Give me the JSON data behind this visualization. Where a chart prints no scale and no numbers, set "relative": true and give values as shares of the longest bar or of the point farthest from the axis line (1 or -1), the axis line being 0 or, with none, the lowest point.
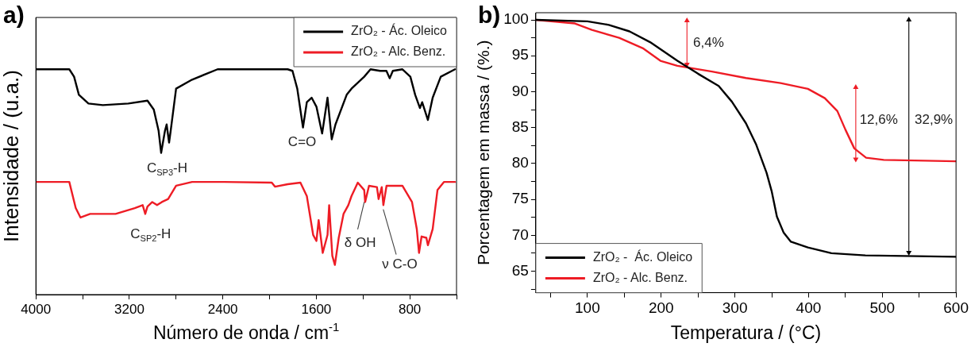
{
  "chart_data": [
    {
      "type": "line",
      "title": "a)",
      "xlabel": "Número de onda / cm$^{-1}$",
      "ylabel": "Intensidade / (u.a.)",
      "relative": true,
      "legend": "top right",
      "xlim": [
        4000,
        400
      ],
      "xticks": [
        4000,
        {
          "value": 3600,
          "label": null
        },
        3200,
        {
          "value": 2800,
          "label": null
        },
        2400,
        {
          "value": 2000,
          "label": null
        },
        1600,
        {
          "value": 1200,
          "label": null
        },
        800,
        {
          "value": 400,
          "label": null
        }
      ],
      "series": [
        {
          "name": "ZrO₂ - Ác. Oleico",
          "color": "#000000",
          "x": [
            4000,
            3714,
            3673,
            3632,
            3550,
            3427,
            3209,
            3045,
            2991,
            2950,
            2928,
            2895,
            2881,
            2860,
            2846,
            2800,
            2663,
            2445,
            1845,
            1804,
            1763,
            1714,
            1681,
            1640,
            1599,
            1550,
            1504,
            1468,
            1436,
            1340,
            1299,
            1190,
            1136,
            1054,
            1000,
            972,
            945,
            863,
            795,
            754,
            713,
            694,
            645,
            604,
            535,
            413
          ],
          "values": [
            1.0,
            1.0,
            0.967,
            0.887,
            0.848,
            0.841,
            0.848,
            0.861,
            0.821,
            0.728,
            0.629,
            0.728,
            0.755,
            0.675,
            0.728,
            0.914,
            0.954,
            1.0,
            1.0,
            0.993,
            0.914,
            0.742,
            0.854,
            0.874,
            0.834,
            0.715,
            0.874,
            0.689,
            0.755,
            0.887,
            0.914,
            0.967,
            1.0,
            0.993,
            0.993,
            0.96,
            0.993,
            1.0,
            0.967,
            0.887,
            0.828,
            0.854,
            0.775,
            0.874,
            0.967,
            1.0
          ]
        },
        {
          "name": "ZrO₂ - Alc. Benz.",
          "color": "#ee1c25",
          "x": [
            4000,
            3714,
            3659,
            3618,
            3536,
            3318,
            3154,
            3086,
            3064,
            3045,
            3004,
            2963,
            2922,
            2868,
            2800,
            2663,
            2390,
            1981,
            1954,
            1845,
            1736,
            1681,
            1627,
            1599,
            1580,
            1545,
            1504,
            1490,
            1463,
            1441,
            1408,
            1367,
            1326,
            1299,
            1245,
            1190,
            1182,
            1149,
            1081,
            1067,
            1040,
            1026,
            999,
            863,
            781,
            740,
            721,
            699,
            658,
            645,
            604,
            563,
            508,
            413
          ],
          "values": [
            0.5,
            0.5,
            0.384,
            0.342,
            0.358,
            0.358,
            0.384,
            0.397,
            0.358,
            0.391,
            0.411,
            0.397,
            0.411,
            0.424,
            0.483,
            0.5,
            0.5,
            0.497,
            0.479,
            0.49,
            0.497,
            0.437,
            0.265,
            0.238,
            0.331,
            0.185,
            0.265,
            0.397,
            0.172,
            0.132,
            0.252,
            0.358,
            0.397,
            0.437,
            0.497,
            0.464,
            0.411,
            0.483,
            0.477,
            0.424,
            0.477,
            0.397,
            0.483,
            0.483,
            0.411,
            0.291,
            0.185,
            0.258,
            0.252,
            0.219,
            0.291,
            0.464,
            0.5,
            0.5
          ]
        },
        {
          "color": "#404040",
          "x": [
            1190,
            1245
          ],
          "values": [
            0.41,
            0.291
          ]
        },
        {
          "color": "#404040",
          "x": [
            1026,
            917
          ],
          "values": [
            0.377,
            0.179
          ]
        }
      ],
      "annotations": [
        "C=O",
        "C$_{SP3}$-H",
        "C$_{SP2}$-H",
        "δ OH",
        "ν C-O"
      ]
    },
    {
      "type": "line",
      "title": "b)",
      "xlabel": "Temperatura / (°C)",
      "ylabel": "Porcentagem em massa / (%.)",
      "legend": "bottom left",
      "xlim": [
        30,
        600
      ],
      "xticks": [
        {
          "value": 50,
          "label": null
        },
        100,
        {
          "value": 150,
          "label": null
        },
        200,
        {
          "value": 250,
          "label": null
        },
        300,
        {
          "value": 350,
          "label": null
        },
        400,
        {
          "value": 450,
          "label": null
        },
        500,
        {
          "value": 550,
          "label": null
        },
        600
      ],
      "ylim": [
        62,
        101
      ],
      "yticks": [
        {
          "value": 62.5,
          "label": null
        },
        65,
        {
          "value": 67.5,
          "label": null
        },
        70,
        {
          "value": 72.5,
          "label": null
        },
        75,
        {
          "value": 77.5,
          "label": null
        },
        80,
        {
          "value": 82.5,
          "label": null
        },
        85,
        {
          "value": 87.5,
          "label": null
        },
        90,
        {
          "value": 92.5,
          "label": null
        },
        95,
        {
          "value": 97.5,
          "label": null
        },
        100
      ],
      "series": [
        {
          "name": "ZrO₂ -  Ác. Oleico",
          "color": "#000000",
          "x": [
            30,
            100,
            129,
            157,
            185,
            222,
            250,
            278,
            296,
            315,
            329,
            343,
            350,
            357,
            366,
            376,
            399,
            431,
            477,
            600
          ],
          "values": [
            100,
            99.8,
            99.3,
            98.4,
            96.9,
            94.3,
            92.5,
            90.8,
            88.6,
            85.6,
            82.6,
            78.7,
            76.1,
            72.6,
            70.4,
            69.1,
            68.3,
            67.5,
            67.2,
            67.0
          ]
        },
        {
          "name": "ZrO₂ - Alc. Benz.",
          "color": "#ee1c25",
          "x": [
            30,
            83,
            106,
            143,
            176,
            199,
            222,
            269,
            315,
            362,
            399,
            422,
            439,
            450,
            462,
            478,
            502,
            600
          ],
          "values": [
            100,
            99.5,
            98.6,
            97.5,
            96.0,
            94.3,
            93.6,
            92.8,
            91.9,
            91.2,
            90.4,
            89.1,
            87.3,
            84.7,
            82.1,
            80.8,
            80.5,
            80.3
          ]
        },
        {
          "color": "#ee1c25",
          "marker": "triangle",
          "x": [
            235,
            235
          ],
          "values": [
            99.9,
            93.8
          ]
        },
        {
          "color": "#ee1c25",
          "marker": "triangle",
          "x": [
            464,
            464
          ],
          "values": [
            90.6,
            80.6
          ]
        },
        {
          "color": "#000000",
          "marker": "triangle",
          "x": [
            536,
            536
          ],
          "values": [
            100,
            67.6
          ]
        }
      ],
      "annotations": [
        "6,4%",
        "12,6%",
        "32,9%"
      ]
    }
  ]
}
